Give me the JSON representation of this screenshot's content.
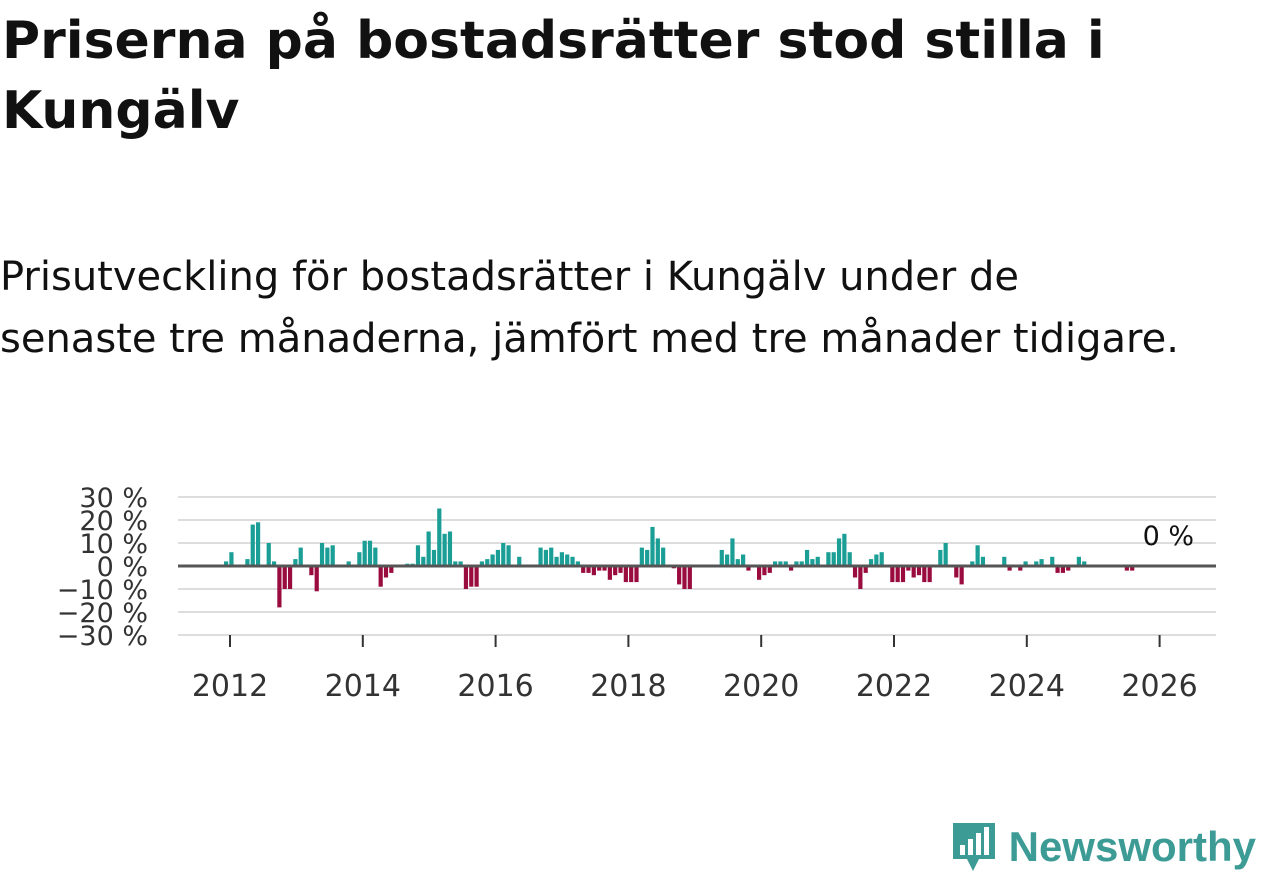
{
  "title": "Priserna på bostadsrätter stod stilla i Kungälv",
  "subtitle": "Prisutveckling för bostadsrätter i Kungälv under de senaste tre månaderna, jämfört med tre månader tidigare.",
  "brand": {
    "name": "Newsworthy"
  },
  "colors": {
    "positive": "#1a9e96",
    "negative": "#9a0b3e",
    "grid": "#dddddd",
    "zero_line": "#555555"
  },
  "chart_data": {
    "type": "bar",
    "title": "Priserna på bostadsrätter stod stilla i Kungälv",
    "xlabel": "",
    "ylabel": "",
    "ylim": [
      -30,
      30
    ],
    "yticks": [
      30,
      20,
      10,
      0,
      -10,
      -20,
      -30
    ],
    "ytick_labels": [
      "30 %",
      "20 %",
      "10 %",
      "0 %",
      "−10 %",
      "−20 %",
      "−30 %"
    ],
    "xticks": [
      2012,
      2014,
      2016,
      2018,
      2020,
      2022,
      2024,
      2026
    ],
    "xtick_labels": [
      "2012",
      "2014",
      "2016",
      "2018",
      "2020",
      "2022",
      "2024",
      "2026"
    ],
    "x_start_year": 2011.9,
    "x_end_year": 2026.0,
    "last_value_label": "0 %",
    "values": [
      2,
      6,
      0,
      0,
      3,
      18,
      19,
      0,
      10,
      2,
      -18,
      -10,
      -10,
      3,
      8,
      0,
      -4,
      -11,
      10,
      8,
      9,
      0,
      0,
      2,
      0,
      6,
      11,
      11,
      8,
      -9,
      -5,
      -3,
      0,
      0,
      1,
      1,
      9,
      4,
      15,
      7,
      25,
      14,
      15,
      2,
      2,
      -10,
      -9,
      -9,
      2,
      3,
      5,
      7,
      10,
      9,
      0,
      4,
      0,
      0,
      0,
      8,
      7,
      8,
      4,
      6,
      5,
      4,
      2,
      -3,
      -3,
      -4,
      -2,
      -2,
      -6,
      -4,
      -3,
      -7,
      -7,
      -7,
      8,
      7,
      17,
      12,
      8,
      0,
      -1,
      -8,
      -10,
      -10,
      0,
      0,
      0,
      0,
      0,
      7,
      5,
      12,
      3,
      5,
      -2,
      0,
      -6,
      -4,
      -3,
      2,
      2,
      2,
      -2,
      2,
      2,
      7,
      3,
      4,
      0,
      6,
      6,
      12,
      14,
      6,
      -5,
      -10,
      -3,
      3,
      5,
      6,
      0,
      -7,
      -7,
      -7,
      -2,
      -5,
      -4,
      -7,
      -7,
      0,
      7,
      10,
      0,
      -5,
      -8,
      0,
      2,
      9,
      4,
      0,
      0,
      0,
      4,
      -2,
      0,
      -2,
      2,
      0,
      2,
      3,
      0,
      4,
      -3,
      -3,
      -2,
      0,
      4,
      2,
      0,
      0,
      0,
      0,
      0,
      0,
      0,
      -2,
      -2,
      0,
      0,
      0,
      0,
      0,
      0,
      0,
      0,
      0,
      0
    ]
  }
}
